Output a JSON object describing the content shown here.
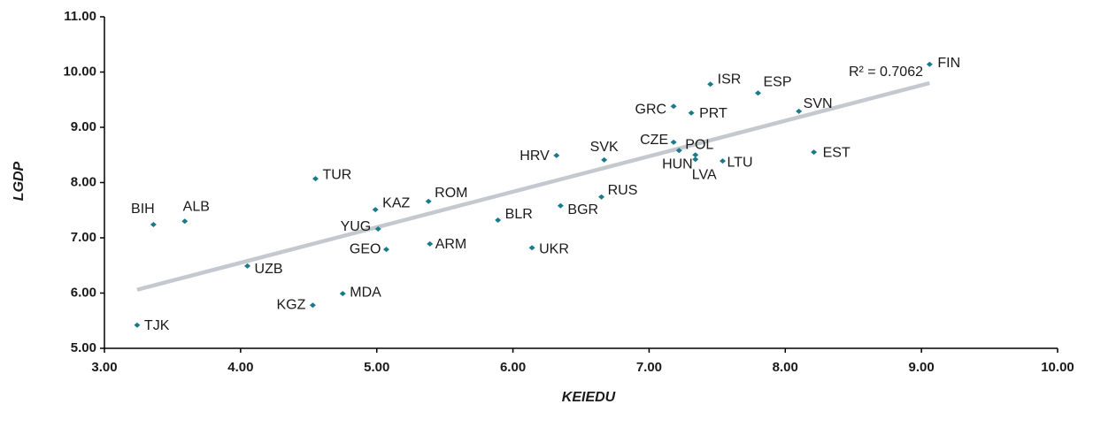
{
  "chart_data": {
    "type": "scatter",
    "x_label": "KEIEDU",
    "y_label": "LGDP",
    "labels": [
      "TJK",
      "KGZ",
      "MDA",
      "UZB",
      "GEO",
      "ARM",
      "UKR",
      "YUG",
      "BIH",
      "ALB",
      "KAZ",
      "ROM",
      "BLR",
      "BGR",
      "RUS",
      "TUR",
      "HRV",
      "SVK",
      "CZE",
      "POL",
      "HUN",
      "LVA",
      "LTU",
      "EST",
      "GRC",
      "PRT",
      "ISR",
      "ESP",
      "SVN",
      "FIN"
    ],
    "x": [
      3.24,
      4.53,
      4.75,
      4.05,
      5.07,
      5.39,
      6.14,
      5.01,
      3.36,
      3.59,
      4.99,
      5.38,
      5.89,
      6.35,
      6.65,
      4.55,
      6.32,
      6.67,
      7.18,
      7.22,
      7.34,
      7.34,
      7.54,
      8.21,
      7.18,
      7.31,
      7.45,
      7.8,
      8.1,
      9.06
    ],
    "values": [
      5.42,
      5.78,
      5.99,
      6.49,
      6.79,
      6.89,
      6.82,
      7.16,
      7.24,
      7.3,
      7.51,
      7.66,
      7.32,
      7.58,
      7.74,
      8.07,
      8.49,
      8.41,
      8.73,
      8.58,
      8.5,
      8.42,
      8.39,
      8.55,
      9.38,
      9.26,
      9.78,
      9.62,
      9.29,
      10.14
    ],
    "color": "#1a7a8a",
    "trendline": {
      "x": [
        3.24,
        9.06
      ],
      "y": [
        6.06,
        9.8
      ],
      "color": "#c3c9ce"
    },
    "annotation": "R² = 0.7062",
    "xlim": [
      3,
      10
    ],
    "xticks": [
      {
        "value": 3,
        "label": "3.00"
      },
      {
        "value": 4,
        "label": "4.00"
      },
      {
        "value": 5,
        "label": "5.00"
      },
      {
        "value": 6,
        "label": "6.00"
      },
      {
        "value": 7,
        "label": "7.00"
      },
      {
        "value": 8,
        "label": "8.00"
      },
      {
        "value": 9,
        "label": "9.00"
      },
      {
        "value": 10,
        "label": "10.00"
      }
    ],
    "ylim": [
      5,
      11
    ],
    "yticks": [
      {
        "value": 5,
        "label": "5.00"
      },
      {
        "value": 6,
        "label": "6.00"
      },
      {
        "value": 7,
        "label": "7.00"
      },
      {
        "value": 8,
        "label": "8.00"
      },
      {
        "value": 9,
        "label": "9.00"
      },
      {
        "value": 10,
        "label": "10.00"
      },
      {
        "value": 11,
        "label": "11.00"
      }
    ],
    "grid": false
  }
}
